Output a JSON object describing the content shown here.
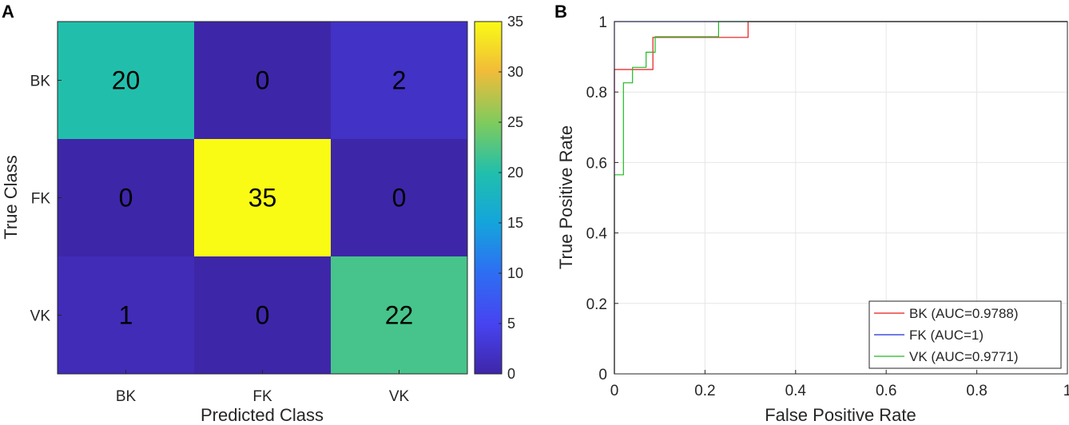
{
  "panels": {
    "a": "A",
    "b": "B"
  },
  "chart_data": [
    {
      "type": "heatmap",
      "title": "",
      "xlabel": "Predicted Class",
      "ylabel": "True Class",
      "x_categories": [
        "BK",
        "FK",
        "VK"
      ],
      "y_categories": [
        "BK",
        "FK",
        "VK"
      ],
      "matrix": [
        [
          20,
          0,
          2
        ],
        [
          0,
          35,
          0
        ],
        [
          1,
          0,
          22
        ]
      ],
      "colorbar": {
        "min": 0,
        "max": 35,
        "ticks": [
          0,
          5,
          10,
          15,
          20,
          25,
          30,
          35
        ],
        "colormap": "parula"
      }
    },
    {
      "type": "line",
      "title": "",
      "xlabel": "False Positive Rate",
      "ylabel": "True Positive Rate",
      "xlim": [
        0,
        1
      ],
      "ylim": [
        0,
        1
      ],
      "xticks": [
        0,
        0.2,
        0.4,
        0.6,
        0.8,
        1
      ],
      "xtick_labels": [
        "0",
        "0.2",
        "0.4",
        "0.6",
        "0.8",
        "1"
      ],
      "yticks": [
        0,
        0.2,
        0.4,
        0.6,
        0.8,
        1
      ],
      "ytick_labels": [
        "0",
        "0.2",
        "0.4",
        "0.6",
        "0.8",
        "1"
      ],
      "grid": true,
      "legend_position": "bottom-right",
      "series": [
        {
          "name": "BK (AUC=0.9788)",
          "color": "#e8191b",
          "x": [
            0,
            0,
            0.085,
            0.085,
            0.295,
            0.295,
            1
          ],
          "y": [
            0,
            0.864,
            0.864,
            0.955,
            0.955,
            1,
            1
          ]
        },
        {
          "name": "FK (AUC=1)",
          "color": "#1d2ad6",
          "x": [
            0,
            0,
            1
          ],
          "y": [
            0,
            1,
            1
          ]
        },
        {
          "name": "VK (AUC=0.9771)",
          "color": "#22b822",
          "x": [
            0,
            0,
            0.02,
            0.02,
            0.04,
            0.04,
            0.07,
            0.07,
            0.09,
            0.09,
            0.23,
            0.23,
            1
          ],
          "y": [
            0,
            0.565,
            0.565,
            0.826,
            0.826,
            0.87,
            0.87,
            0.913,
            0.913,
            0.957,
            0.957,
            1,
            1
          ]
        }
      ]
    }
  ]
}
